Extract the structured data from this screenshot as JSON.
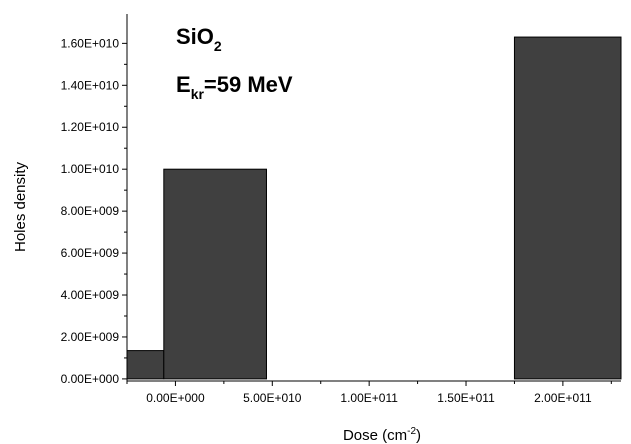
{
  "chart_data": {
    "type": "bar",
    "xlabel": "Dose (cm",
    "xlabel_sup": "-2",
    "xlabel_end": ")",
    "ylabel": "Holes density",
    "xlim": [
      -25000000000.0,
      230000000000.0
    ],
    "ylim": [
      -100000000.0,
      17400000000.0
    ],
    "x_ticks": [
      0,
      50000000000.0,
      100000000000.0,
      150000000000.0,
      200000000000.0
    ],
    "x_tick_labels": [
      "0.00E+000",
      "5.00E+010",
      "1.00E+011",
      "1.50E+011",
      "2.00E+011"
    ],
    "y_ticks": [
      0,
      2000000000.0,
      4000000000.0,
      6000000000.0,
      8000000000.0,
      10000000000.0,
      12000000000.0,
      14000000000.0,
      16000000000.0
    ],
    "y_tick_labels": [
      "0.00E+000",
      "2.00E+009",
      "4.00E+009",
      "6.00E+009",
      "8.00E+009",
      "1.00E+010",
      "1.20E+010",
      "1.40E+010",
      "1.60E+010"
    ],
    "bars": [
      {
        "x_start": -25000000000.0,
        "x_end": -6000000000.0,
        "value": 1350000000.0
      },
      {
        "x_start": -6000000000.0,
        "x_end": 47000000000.0,
        "value": 10000000000.0
      },
      {
        "x_start": 175000000000.0,
        "x_end": 230000000000.0,
        "value": 16300000000.0
      }
    ],
    "bar_color": "#404040",
    "annotation": {
      "line1_main": "SiO",
      "line1_sub": "2",
      "line2_main": "E",
      "line2_sub": "kr",
      "line2_rest": "=59 MeV"
    }
  }
}
